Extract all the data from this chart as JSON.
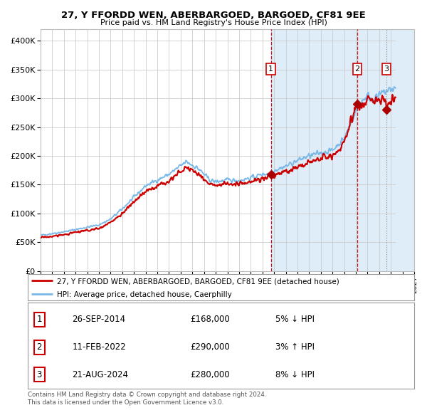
{
  "title": "27, Y FFORDD WEN, ABERBARGOED, BARGOED, CF81 9EE",
  "subtitle": "Price paid vs. HM Land Registry's House Price Index (HPI)",
  "legend_house": "27, Y FFORDD WEN, ABERBARGOED, BARGOED, CF81 9EE (detached house)",
  "legend_hpi": "HPI: Average price, detached house, Caerphilly",
  "footer1": "Contains HM Land Registry data © Crown copyright and database right 2024.",
  "footer2": "This data is licensed under the Open Government Licence v3.0.",
  "transactions": [
    {
      "num": 1,
      "date": "26-SEP-2014",
      "price": 168000,
      "price_str": "£168,000",
      "pct": "5%",
      "dir": "↓",
      "year": 2014.73
    },
    {
      "num": 2,
      "date": "11-FEB-2022",
      "price": 290000,
      "price_str": "£290,000",
      "pct": "3%",
      "dir": "↑",
      "year": 2022.12
    },
    {
      "num": 3,
      "date": "21-AUG-2024",
      "price": 280000,
      "price_str": "£280,000",
      "pct": "8%",
      "dir": "↓",
      "year": 2024.62
    }
  ],
  "ylim": [
    0,
    420000
  ],
  "xlim_start": 1995.0,
  "xlim_end": 2027.0,
  "shade_start": 2014.73,
  "hpi_color": "#7ab8e8",
  "house_color": "#cc0000",
  "background_color": "#ffffff",
  "shade_color": "#deedf8",
  "grid_color": "#cccccc",
  "vline_colors": [
    "#cc0000",
    "#cc0000",
    "#888888"
  ],
  "vline_styles": [
    "--",
    "--",
    ":"
  ],
  "hatch_start": 2025.4,
  "marker_color": "#aa0000"
}
